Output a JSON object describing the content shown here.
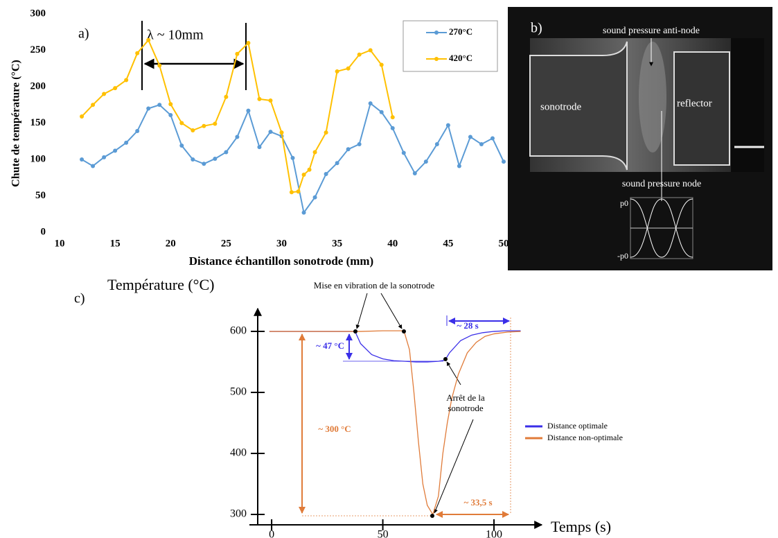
{
  "chart_data": [
    {
      "type": "line",
      "label": "a)",
      "annotation": "λ ~ 10mm",
      "ylabel": "Chute de température (°C)",
      "xlabel": "Distance échantillon sonotrode (mm)",
      "xlim": [
        10,
        50
      ],
      "ylim": [
        0,
        300
      ],
      "xticks": [
        10,
        15,
        20,
        25,
        30,
        35,
        40,
        45,
        50
      ],
      "yticks": [
        0,
        50,
        100,
        150,
        200,
        250,
        300
      ],
      "legend": "upper right",
      "markers": true,
      "series": [
        {
          "name": "270°C",
          "color": "#5b9bd5",
          "x": [
            12,
            13,
            14,
            15,
            16,
            17,
            18,
            19,
            20,
            21,
            22,
            23,
            24,
            25,
            26,
            27,
            28,
            29,
            30,
            31,
            32,
            33,
            34,
            35,
            36,
            37,
            38,
            39,
            40,
            41,
            42,
            43,
            44,
            45,
            46,
            47,
            48,
            49,
            50
          ],
          "values": [
            100,
            91,
            103,
            112,
            123,
            139,
            170,
            175,
            161,
            119,
            100,
            94,
            101,
            110,
            131,
            167,
            117,
            138,
            132,
            102,
            27,
            48,
            80,
            95,
            114,
            121,
            177,
            165,
            143,
            109,
            81,
            97,
            121,
            147,
            91,
            131,
            121,
            129,
            97
          ]
        },
        {
          "name": "420°C",
          "color": "#ffc000",
          "x": [
            12,
            13,
            14,
            15,
            16,
            17,
            18,
            19,
            20,
            21,
            22,
            23,
            24,
            25,
            26,
            27,
            28,
            29,
            30,
            30.9,
            31.5,
            32,
            32.5,
            33,
            34,
            35,
            36,
            37,
            38,
            39,
            40
          ],
          "values": [
            159,
            175,
            190,
            198,
            209,
            246,
            264,
            229,
            176,
            150,
            140,
            146,
            149,
            186,
            245,
            260,
            183,
            181,
            137,
            55,
            56,
            79,
            86,
            110,
            137,
            221,
            225,
            244,
            250,
            230,
            158
          ]
        }
      ]
    },
    {
      "type": "image",
      "label": "b)",
      "annotations": [
        "sound pressure anti-node",
        "sonotrode",
        "reflector",
        "sound pressure node"
      ],
      "axis_labels": [
        "p0",
        "-p0"
      ]
    },
    {
      "type": "line",
      "label": "c)",
      "ylabel": "Température (°C)",
      "xlabel": "Temps (s)",
      "xlim": [
        -10,
        117
      ],
      "ylim": [
        283,
        643
      ],
      "xticks": [
        0,
        50,
        100
      ],
      "yticks": [
        300,
        400,
        500,
        600
      ],
      "legend": "right",
      "markers": false,
      "annotations": [
        "Mise en vibration de la sonotrode",
        "~ 47 °C",
        "~ 28 s",
        "~ 300 °C",
        "Arrêt de la sonotrode",
        "~ 33,5 s"
      ],
      "series": [
        {
          "name": "Distance optimale",
          "color": "#3a2ee8",
          "x": [
            -1,
            10,
            20,
            30,
            37.5,
            40,
            45,
            50,
            55,
            60,
            65,
            70,
            75,
            78,
            80,
            85,
            90,
            95,
            100,
            105,
            112
          ],
          "values": [
            600,
            600,
            600,
            600,
            600,
            580,
            562,
            555,
            552,
            551,
            550,
            550,
            551,
            553,
            565,
            585,
            594,
            598,
            600,
            601,
            601
          ]
        },
        {
          "name": "Distance non-optimale",
          "color": "#e07b39",
          "x": [
            -1,
            10,
            20,
            30,
            40,
            50,
            59.5,
            62,
            64,
            66,
            68,
            70,
            72.5,
            75,
            77,
            79,
            81,
            84,
            88,
            92,
            96,
            100,
            106,
            112
          ],
          "values": [
            600,
            600,
            600,
            600,
            600,
            601,
            601,
            570,
            500,
            420,
            350,
            315,
            300,
            330,
            400,
            450,
            490,
            530,
            565,
            582,
            592,
            596,
            599,
            600
          ]
        }
      ]
    }
  ]
}
